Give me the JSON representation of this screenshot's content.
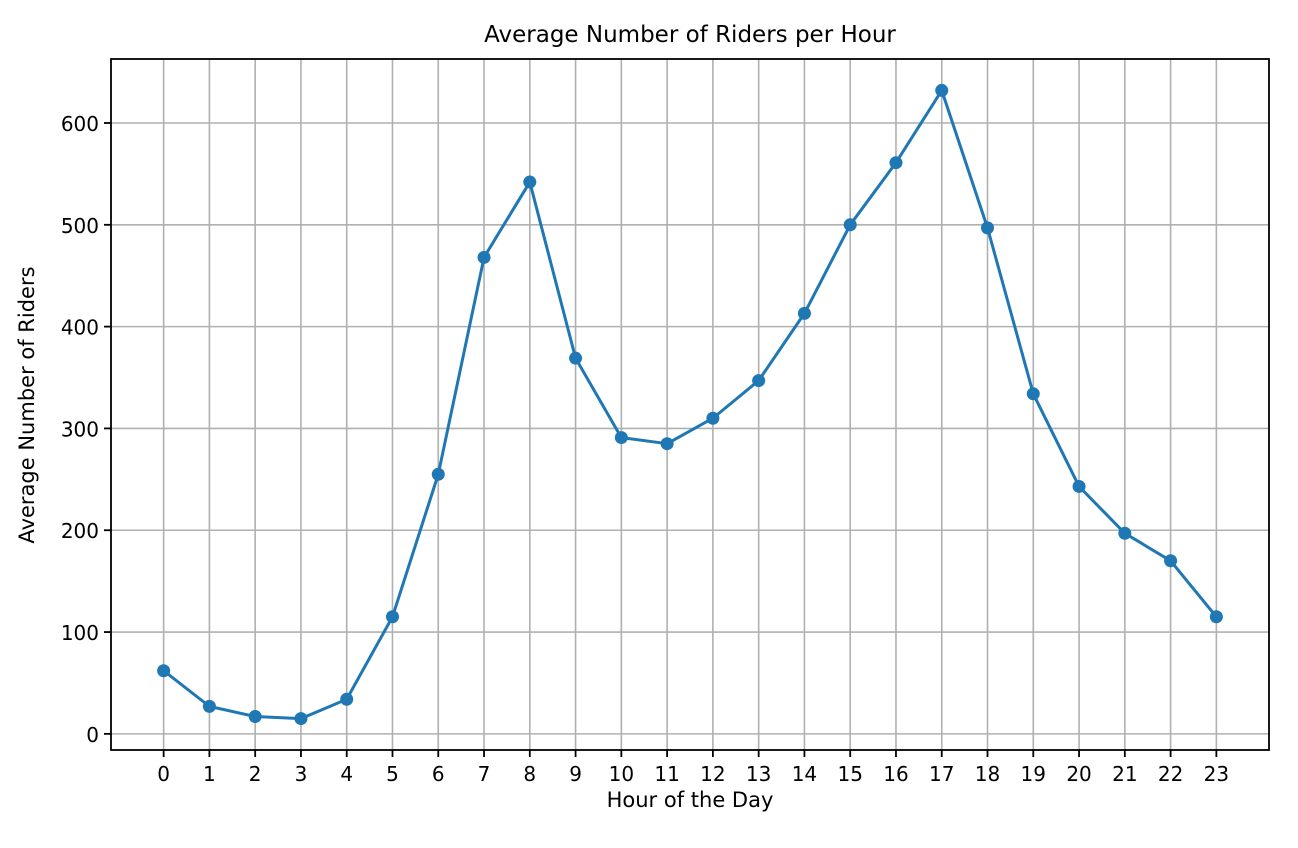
{
  "chart_data": {
    "type": "line",
    "title": "Average Number of Riders per Hour",
    "xlabel": "Hour of the Day",
    "ylabel": "Average Number of Riders",
    "x": [
      0,
      1,
      2,
      3,
      4,
      5,
      6,
      7,
      8,
      9,
      10,
      11,
      12,
      13,
      14,
      15,
      16,
      17,
      18,
      19,
      20,
      21,
      22,
      23
    ],
    "values": [
      62,
      27,
      17,
      15,
      34,
      115,
      255,
      468,
      542,
      369,
      291,
      285,
      310,
      347,
      413,
      500,
      561,
      632,
      497,
      334,
      243,
      197,
      170,
      115
    ],
    "xticks": [
      0,
      1,
      2,
      3,
      4,
      5,
      6,
      7,
      8,
      9,
      10,
      11,
      12,
      13,
      14,
      15,
      16,
      17,
      18,
      19,
      20,
      21,
      22,
      23
    ],
    "yticks": [
      0,
      100,
      200,
      300,
      400,
      500,
      600
    ],
    "xlim": [
      -1.15,
      24.15
    ],
    "ylim": [
      -15.85,
      662.85
    ],
    "grid": true,
    "legend": "none",
    "marker": "circle",
    "line_color": "#1f77b4",
    "grid_color": "#b0b0b0",
    "axis_color": "#000000",
    "background_color": "#ffffff"
  }
}
